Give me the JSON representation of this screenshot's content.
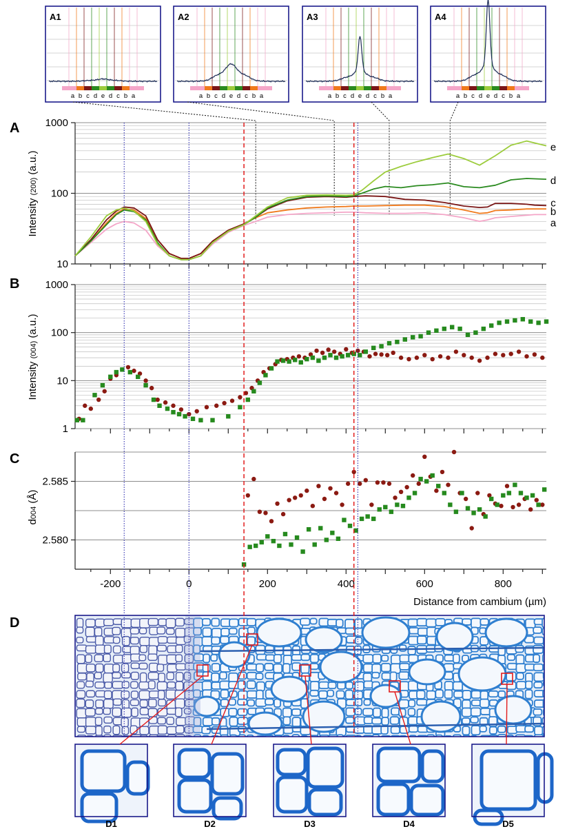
{
  "panel_letters": {
    "A": "A",
    "B": "B",
    "C": "C",
    "D": "D"
  },
  "colors": {
    "a": "#f4a6c8",
    "b": "#f07a1c",
    "c": "#7a1616",
    "d": "#2a8a1f",
    "e": "#9ccc3c",
    "red_dots": "#8b1a12",
    "green_squares": "#268a1e",
    "blue_guides": "#2d2db0",
    "red_guides": "#e21b1b",
    "frame": "#1a1a8a",
    "micro_cell_wall": "#2f7fd0",
    "micro_background": "#e6eef8"
  },
  "chart_data": [
    {
      "id": "A",
      "type": "line",
      "title": "",
      "ylabel": "Intensity (200) (a.u.)",
      "ylabel_parts": [
        "Intensity ",
        "(200)",
        " (a.u.)"
      ],
      "xlabel": "",
      "yscale": "log",
      "xlim": [
        -290,
        910
      ],
      "ylim": [
        10,
        1000
      ],
      "yticks": [
        10,
        100,
        1000
      ],
      "ytick_labels": [
        "10",
        "100",
        "1000"
      ],
      "grid": true,
      "series": [
        {
          "name": "a",
          "color": "#f4a6c8",
          "x": [
            -290,
            -250,
            -210,
            -185,
            -165,
            -140,
            -110,
            -80,
            -50,
            -20,
            0,
            30,
            60,
            100,
            140,
            170,
            200,
            250,
            300,
            350,
            400,
            420,
            450,
            500,
            550,
            600,
            650,
            700,
            740,
            760,
            780,
            820,
            860,
            880,
            910
          ],
          "y": [
            13,
            20,
            31,
            37,
            40,
            38,
            30,
            18,
            13,
            11.5,
            11.5,
            13,
            19,
            28,
            35,
            40,
            46,
            50,
            52,
            53,
            54,
            54,
            53,
            52,
            52,
            53,
            50,
            45,
            40,
            42,
            45,
            47,
            49,
            50,
            50
          ]
        },
        {
          "name": "b",
          "color": "#f07a1c",
          "x": [
            -290,
            -250,
            -210,
            -185,
            -165,
            -140,
            -110,
            -80,
            -50,
            -20,
            0,
            30,
            60,
            100,
            140,
            170,
            200,
            250,
            300,
            350,
            400,
            420,
            450,
            500,
            550,
            600,
            650,
            700,
            740,
            760,
            780,
            820,
            860,
            880,
            910
          ],
          "y": [
            13,
            21,
            38,
            52,
            60,
            58,
            44,
            22,
            14,
            12,
            12,
            14,
            21,
            30,
            37,
            45,
            53,
            58,
            62,
            64,
            65,
            66,
            66,
            67,
            68,
            68,
            65,
            58,
            52,
            53,
            57,
            58,
            60,
            60,
            60
          ]
        },
        {
          "name": "c",
          "color": "#7a1616",
          "x": [
            -290,
            -250,
            -210,
            -185,
            -165,
            -140,
            -110,
            -80,
            -50,
            -20,
            0,
            30,
            60,
            100,
            140,
            170,
            200,
            250,
            300,
            350,
            400,
            420,
            450,
            500,
            550,
            600,
            650,
            700,
            740,
            760,
            780,
            820,
            860,
            880,
            910
          ],
          "y": [
            13,
            22,
            42,
            56,
            64,
            62,
            48,
            22,
            14,
            12,
            12,
            14,
            21,
            30,
            37,
            46,
            60,
            78,
            88,
            90,
            88,
            90,
            92,
            90,
            82,
            80,
            74,
            66,
            63,
            64,
            72,
            72,
            70,
            68,
            67
          ]
        },
        {
          "name": "d",
          "color": "#2a8a1f",
          "x": [
            -290,
            -250,
            -210,
            -185,
            -165,
            -140,
            -110,
            -80,
            -50,
            -20,
            0,
            30,
            60,
            100,
            140,
            170,
            200,
            250,
            300,
            350,
            400,
            420,
            440,
            470,
            500,
            540,
            580,
            620,
            660,
            700,
            740,
            780,
            820,
            860,
            910
          ],
          "y": [
            13,
            21,
            36,
            50,
            58,
            55,
            42,
            20,
            13,
            11.5,
            11.5,
            13,
            20,
            29,
            36,
            46,
            62,
            80,
            90,
            92,
            90,
            92,
            100,
            115,
            125,
            120,
            128,
            132,
            140,
            124,
            120,
            130,
            155,
            162,
            158
          ]
        },
        {
          "name": "e",
          "color": "#9ccc3c",
          "x": [
            -290,
            -250,
            -210,
            -185,
            -165,
            -140,
            -110,
            -80,
            -50,
            -20,
            0,
            30,
            60,
            100,
            140,
            170,
            200,
            250,
            300,
            350,
            400,
            420,
            440,
            470,
            500,
            540,
            580,
            620,
            660,
            700,
            740,
            780,
            820,
            860,
            910
          ],
          "y": [
            13,
            24,
            48,
            58,
            62,
            56,
            40,
            19,
            13,
            11.5,
            11.5,
            13,
            20,
            29,
            36,
            48,
            64,
            86,
            94,
            95,
            94,
            95,
            110,
            150,
            200,
            240,
            280,
            320,
            360,
            310,
            250,
            340,
            480,
            550,
            470
          ]
        }
      ],
      "series_labels": [
        "e",
        "d",
        "c",
        "b",
        "a"
      ]
    },
    {
      "id": "B",
      "type": "scatter",
      "title": "",
      "ylabel": "Intensity (004) (a.u.)",
      "ylabel_parts": [
        "Intensity ",
        "(004)",
        " (a.u.)"
      ],
      "xlabel": "",
      "yscale": "log",
      "xlim": [
        -290,
        910
      ],
      "ylim": [
        1,
        1000
      ],
      "yticks": [
        1,
        10,
        100,
        1000
      ],
      "ytick_labels": [
        "1",
        "10",
        "100",
        "1000"
      ],
      "grid": true,
      "series": [
        {
          "name": "",
          "marker": "circle",
          "color": "#8b1a12",
          "x": [
            -280,
            -265,
            -250,
            -230,
            -215,
            -200,
            -185,
            -170,
            -155,
            -140,
            -125,
            -110,
            -95,
            -80,
            -60,
            -40,
            -20,
            0,
            20,
            45,
            70,
            90,
            110,
            130,
            145,
            160,
            175,
            190,
            205,
            220,
            235,
            250,
            265,
            280,
            295,
            310,
            325,
            340,
            355,
            370,
            385,
            400,
            415,
            430,
            445,
            460,
            475,
            490,
            505,
            520,
            540,
            560,
            580,
            600,
            620,
            640,
            660,
            680,
            700,
            720,
            740,
            760,
            780,
            800,
            820,
            840,
            860,
            880,
            900
          ],
          "y": [
            1.6,
            3,
            2.6,
            4,
            6,
            11,
            13,
            17,
            19,
            16,
            14,
            10,
            7,
            4,
            3.5,
            3,
            2.5,
            2,
            2.3,
            2.8,
            3,
            3.4,
            3.8,
            4.5,
            5.5,
            7,
            10,
            15,
            18,
            22,
            27,
            28,
            30,
            32,
            30,
            35,
            42,
            38,
            44,
            40,
            36,
            45,
            38,
            42,
            40,
            32,
            36,
            35,
            34,
            38,
            30,
            28,
            30,
            34,
            28,
            32,
            30,
            40,
            34,
            30,
            26,
            30,
            36,
            34,
            36,
            40,
            32,
            35,
            30
          ]
        },
        {
          "name": "",
          "marker": "square",
          "color": "#268a1e",
          "x": [
            -285,
            -270,
            -240,
            -220,
            -200,
            -185,
            -170,
            -150,
            -130,
            -110,
            -90,
            -75,
            -55,
            -40,
            -25,
            -10,
            10,
            30,
            60,
            100,
            130,
            150,
            165,
            180,
            195,
            210,
            225,
            240,
            255,
            270,
            285,
            300,
            315,
            330,
            345,
            360,
            375,
            390,
            405,
            420,
            435,
            450,
            470,
            490,
            510,
            530,
            550,
            570,
            590,
            610,
            630,
            650,
            670,
            690,
            710,
            730,
            750,
            770,
            790,
            810,
            830,
            850,
            870,
            890,
            910
          ],
          "y": [
            1.5,
            1.5,
            5,
            8,
            12,
            15,
            17,
            15,
            12,
            8,
            4,
            3,
            2.6,
            2.2,
            2,
            1.8,
            1.6,
            1.5,
            1.5,
            1.8,
            2.8,
            4,
            6,
            9,
            13,
            18,
            25,
            26,
            25,
            27,
            24,
            28,
            30,
            26,
            30,
            34,
            30,
            32,
            34,
            36,
            34,
            40,
            48,
            52,
            60,
            64,
            72,
            80,
            84,
            100,
            110,
            120,
            130,
            120,
            90,
            100,
            120,
            140,
            160,
            170,
            180,
            190,
            170,
            160,
            170
          ]
        }
      ]
    },
    {
      "id": "C",
      "type": "scatter",
      "title": "",
      "ylabel": "d004 (Å)",
      "ylabel_parts": [
        "d",
        "004",
        " (Å)"
      ],
      "xlabel": "Distance from cambium (µm)",
      "xlim": [
        -290,
        910
      ],
      "ylim": [
        2.5775,
        2.5875
      ],
      "yticks": [
        2.58,
        2.585
      ],
      "ytick_labels": [
        "2.580",
        "2.585"
      ],
      "xticks": [
        -200,
        0,
        200,
        400,
        600,
        800
      ],
      "xtick_labels": [
        "-200",
        "0",
        "200",
        "400",
        "600",
        "800"
      ],
      "grid": true,
      "series": [
        {
          "name": "",
          "marker": "circle",
          "color": "#8b1a12",
          "x": [
            150,
            165,
            180,
            195,
            210,
            225,
            240,
            255,
            270,
            285,
            300,
            315,
            330,
            345,
            360,
            375,
            390,
            405,
            420,
            435,
            450,
            465,
            480,
            495,
            510,
            525,
            540,
            555,
            570,
            585,
            600,
            615,
            630,
            645,
            660,
            675,
            690,
            705,
            720,
            735,
            750,
            765,
            780,
            795,
            810,
            825,
            840,
            855,
            870,
            885,
            900
          ],
          "y": [
            2.5838,
            2.5852,
            2.5824,
            2.5823,
            2.5816,
            2.5831,
            2.5822,
            2.5834,
            2.5836,
            2.5838,
            2.5842,
            2.5829,
            2.5846,
            2.5835,
            2.5844,
            2.584,
            2.583,
            2.5848,
            2.5858,
            2.5848,
            2.5851,
            2.583,
            2.5849,
            2.5849,
            2.5848,
            2.5836,
            2.5841,
            2.5845,
            2.5855,
            2.5848,
            2.5871,
            2.5854,
            2.5842,
            2.5858,
            2.5847,
            2.5875,
            2.584,
            2.5835,
            2.581,
            2.584,
            2.5822,
            2.5838,
            2.5831,
            2.5829,
            2.5846,
            2.5828,
            2.583,
            2.5835,
            2.5826,
            2.5834,
            2.583
          ]
        },
        {
          "name": "",
          "marker": "square",
          "color": "#268a1e",
          "x": [
            140,
            155,
            170,
            185,
            200,
            215,
            230,
            245,
            260,
            275,
            290,
            305,
            320,
            335,
            350,
            365,
            380,
            395,
            410,
            425,
            440,
            455,
            470,
            485,
            500,
            515,
            530,
            545,
            560,
            575,
            590,
            605,
            620,
            635,
            650,
            665,
            680,
            695,
            710,
            725,
            740,
            755,
            770,
            785,
            800,
            815,
            830,
            845,
            860,
            875,
            890,
            905
          ],
          "y": [
            2.5779,
            2.5794,
            2.5795,
            2.5798,
            2.5803,
            2.5799,
            2.5795,
            2.5805,
            2.5796,
            2.5802,
            2.579,
            2.5809,
            2.5796,
            2.581,
            2.58,
            2.5806,
            2.5801,
            2.5817,
            2.5812,
            2.5808,
            2.5818,
            2.582,
            2.5818,
            2.5826,
            2.5828,
            2.5824,
            2.583,
            2.5829,
            2.5836,
            2.584,
            2.5852,
            2.585,
            2.5855,
            2.5846,
            2.584,
            2.583,
            2.5824,
            2.584,
            2.5827,
            2.5823,
            2.5826,
            2.582,
            2.5835,
            2.583,
            2.5838,
            2.584,
            2.5847,
            2.584,
            2.5836,
            2.5838,
            2.583,
            2.5843
          ]
        }
      ]
    }
  ],
  "insets": [
    {
      "label": "A1",
      "peak": 0.0,
      "halo": 0.03
    },
    {
      "label": "A2",
      "peak": 0.0,
      "halo": 0.22
    },
    {
      "label": "A3",
      "peak": 0.5,
      "halo": 0.14
    },
    {
      "label": "A4",
      "peak": 0.95,
      "halo": 0.22
    }
  ],
  "inset_ticks": [
    "a",
    "b",
    "c",
    "d",
    "e",
    "d",
    "c",
    "b",
    "a"
  ],
  "inset_anchor_x": [
    170,
    370,
    510,
    665
  ],
  "guides": {
    "blue_x": [
      -165,
      0,
      430
    ],
    "red_x": [
      140,
      420
    ]
  },
  "micro_zooms": [
    {
      "label": "D1",
      "target_x": 90
    },
    {
      "label": "D2",
      "target_x": 175
    },
    {
      "label": "D3",
      "target_x": 310
    },
    {
      "label": "D4",
      "target_x": 535
    },
    {
      "label": "D5",
      "target_x": 825
    }
  ]
}
